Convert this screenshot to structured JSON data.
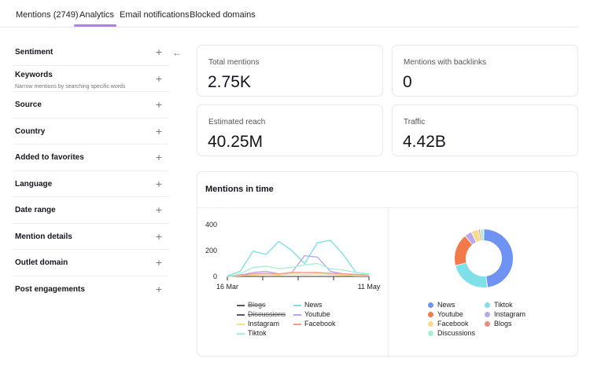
{
  "tabs": [
    {
      "label": "Mentions (2749)",
      "active": false
    },
    {
      "label": "Analytics",
      "active": true
    },
    {
      "label": "Email notifications",
      "active": false
    },
    {
      "label": "Blocked domains",
      "active": false
    }
  ],
  "filters": [
    {
      "label": "Sentiment"
    },
    {
      "label": "Keywords",
      "sub": "Narrow mentions by searching specific words"
    },
    {
      "label": "Source"
    },
    {
      "label": "Country"
    },
    {
      "label": "Added to favorites"
    },
    {
      "label": "Language"
    },
    {
      "label": "Date range"
    },
    {
      "label": "Mention details"
    },
    {
      "label": "Outlet domain"
    },
    {
      "label": "Post engagements"
    }
  ],
  "icons": {
    "plus": "plus-icon",
    "collapse": "arrow-left-icon"
  },
  "glyphs": {
    "plus": "+",
    "collapse": "←"
  },
  "stats": [
    {
      "label": "Total mentions",
      "value": "2.75K"
    },
    {
      "label": "Mentions with backlinks",
      "value": "0"
    },
    {
      "label": "Estimated reach",
      "value": "40.25M"
    },
    {
      "label": "Traffic",
      "value": "4.42B"
    }
  ],
  "mentions_card": {
    "title": "Mentions in time"
  },
  "chart_data": [
    {
      "type": "line",
      "x_tick_labels": [
        "16 Mar",
        "11 May"
      ],
      "x_points": 12,
      "ylim": [
        0,
        400
      ],
      "y_ticks": [
        0,
        200,
        400
      ],
      "grid": false,
      "legend_position": "bottom",
      "series": [
        {
          "name": "Blogs",
          "color": "#555566",
          "visible": false,
          "values": [
            0,
            0,
            0,
            0,
            0,
            0,
            0,
            0,
            0,
            0,
            0,
            0
          ]
        },
        {
          "name": "News",
          "color": "#7fe0ea",
          "visible": true,
          "values": [
            5,
            40,
            195,
            170,
            270,
            200,
            100,
            260,
            280,
            170,
            30,
            20
          ]
        },
        {
          "name": "Discussions",
          "color": "#555566",
          "visible": false,
          "values": [
            0,
            0,
            0,
            0,
            0,
            0,
            0,
            0,
            0,
            0,
            0,
            0
          ]
        },
        {
          "name": "Youtube",
          "color": "#b9a8f0",
          "visible": true,
          "values": [
            0,
            10,
            30,
            40,
            20,
            30,
            160,
            150,
            40,
            20,
            15,
            10
          ]
        },
        {
          "name": "Instagram",
          "color": "#f7dc8c",
          "visible": true,
          "values": [
            0,
            5,
            10,
            15,
            10,
            20,
            15,
            20,
            15,
            10,
            5,
            5
          ]
        },
        {
          "name": "Facebook",
          "color": "#f49a8c",
          "visible": true,
          "values": [
            0,
            10,
            20,
            25,
            20,
            30,
            30,
            30,
            25,
            20,
            15,
            10
          ]
        },
        {
          "name": "Tiktok",
          "color": "#a9efd8",
          "visible": true,
          "values": [
            0,
            20,
            70,
            80,
            60,
            70,
            90,
            100,
            60,
            50,
            30,
            15
          ]
        }
      ]
    },
    {
      "type": "pie",
      "donut": true,
      "legend_position": "bottom",
      "slices": [
        {
          "label": "News",
          "value": 48,
          "color": "#6f93f2"
        },
        {
          "label": "Tiktok",
          "value": 23,
          "color": "#7fe0ea"
        },
        {
          "label": "Youtube",
          "value": 18,
          "color": "#f27a4a"
        },
        {
          "label": "Instagram",
          "value": 4,
          "color": "#b9a8f0"
        },
        {
          "label": "Facebook",
          "value": 4,
          "color": "#f7dc8c"
        },
        {
          "label": "Blogs",
          "value": 1,
          "color": "#f28a86"
        },
        {
          "label": "Discussions",
          "value": 2,
          "color": "#a9efd8"
        }
      ]
    }
  ]
}
